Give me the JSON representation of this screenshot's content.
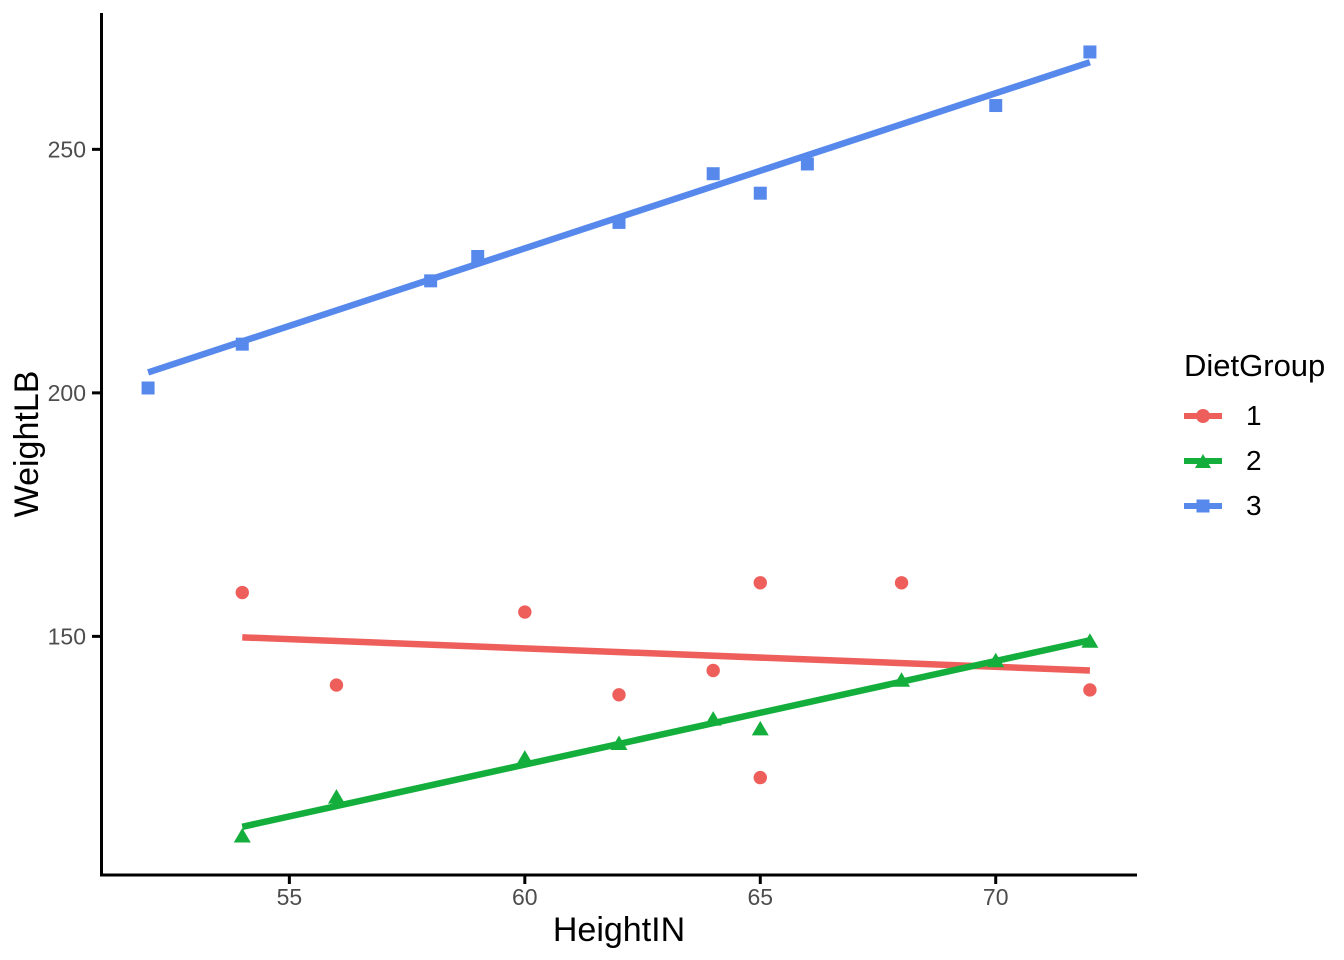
{
  "chart_data": {
    "type": "scatter",
    "title": "",
    "xlabel": "HeightIN",
    "ylabel": "WeightLB",
    "x_ticks": [
      55,
      60,
      65,
      70
    ],
    "y_ticks": [
      150,
      200,
      250
    ],
    "xlim": [
      51,
      73
    ],
    "ylim": [
      101,
      278
    ],
    "grid": false,
    "legend": {
      "title": "DietGroup",
      "position": "right"
    },
    "colors": {
      "axis_line": "#000000",
      "axis_text": "#4D4D4D",
      "axis_title": "#000000"
    },
    "series": [
      {
        "name": "1",
        "color": "#EE5F5B",
        "marker": "circle",
        "points": [
          [
            54,
            159
          ],
          [
            56,
            140
          ],
          [
            60,
            155
          ],
          [
            62,
            138
          ],
          [
            64,
            143
          ],
          [
            65,
            161
          ],
          [
            65,
            121
          ],
          [
            68,
            161
          ],
          [
            72,
            139
          ]
        ],
        "trend": {
          "x1": 54,
          "y1": 149.8,
          "x2": 72,
          "y2": 143.0
        }
      },
      {
        "name": "2",
        "color": "#14AE3C",
        "marker": "triangle",
        "points": [
          [
            54,
            109
          ],
          [
            56,
            117
          ],
          [
            60,
            125
          ],
          [
            62,
            128
          ],
          [
            64,
            133
          ],
          [
            65,
            131
          ],
          [
            68,
            141
          ],
          [
            70,
            145
          ],
          [
            72,
            149
          ]
        ],
        "trend": {
          "x1": 54,
          "y1": 110.9,
          "x2": 72,
          "y2": 149.2
        }
      },
      {
        "name": "3",
        "color": "#5789EC",
        "marker": "square",
        "points": [
          [
            52,
            201
          ],
          [
            54,
            210
          ],
          [
            58,
            223
          ],
          [
            59,
            228
          ],
          [
            62,
            235
          ],
          [
            64,
            245
          ],
          [
            65,
            241
          ],
          [
            66,
            247
          ],
          [
            70,
            259
          ],
          [
            72,
            270
          ]
        ],
        "trend": {
          "x1": 52,
          "y1": 204.2,
          "x2": 72,
          "y2": 267.9
        }
      }
    ]
  }
}
